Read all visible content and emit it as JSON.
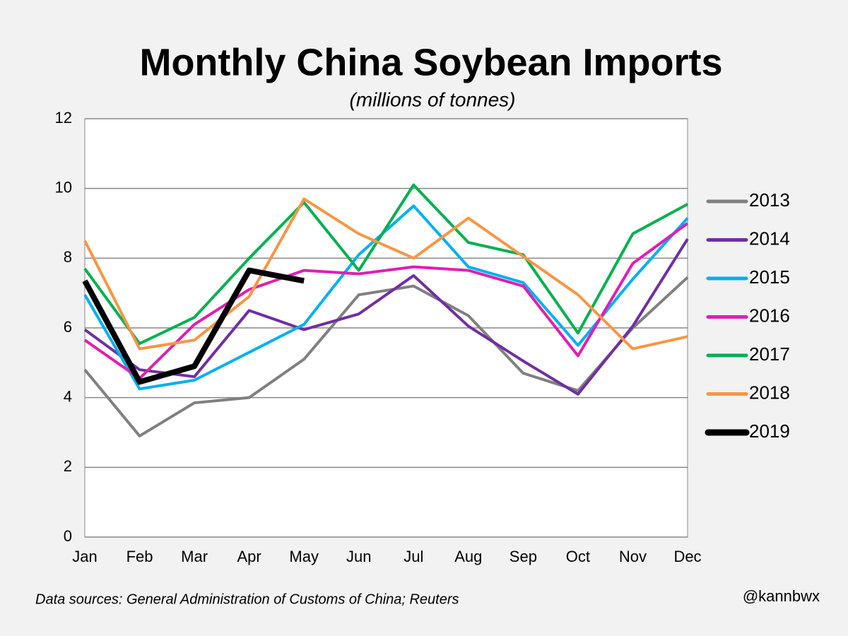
{
  "chart_data": {
    "type": "line",
    "title": "Monthly China Soybean Imports",
    "subtitle": "(millions of tonnes)",
    "source": "Data sources: General Administration of Customs of China; Reuters",
    "credit": "@kannbwx",
    "categories": [
      "Jan",
      "Feb",
      "Mar",
      "Apr",
      "May",
      "Jun",
      "Jul",
      "Aug",
      "Sep",
      "Oct",
      "Nov",
      "Dec"
    ],
    "series": [
      {
        "name": "2013",
        "color": "#808080",
        "width": 4,
        "values": [
          4.8,
          2.9,
          3.85,
          4.0,
          5.1,
          6.95,
          7.2,
          6.35,
          4.7,
          4.2,
          6.0,
          7.45
        ]
      },
      {
        "name": "2014",
        "color": "#7030a0",
        "width": 4,
        "values": [
          5.95,
          4.8,
          4.6,
          6.5,
          5.95,
          6.4,
          7.5,
          6.05,
          5.05,
          4.1,
          6.05,
          8.55
        ]
      },
      {
        "name": "2015",
        "color": "#00b0f0",
        "width": 4,
        "values": [
          6.95,
          4.25,
          4.5,
          5.3,
          6.1,
          8.1,
          9.5,
          7.75,
          7.3,
          5.5,
          7.4,
          9.15
        ]
      },
      {
        "name": "2016",
        "color": "#e01eb4",
        "width": 4,
        "values": [
          5.65,
          4.55,
          6.1,
          7.1,
          7.65,
          7.55,
          7.75,
          7.65,
          7.2,
          5.2,
          7.85,
          9.0
        ]
      },
      {
        "name": "2017",
        "color": "#00b050",
        "width": 4,
        "values": [
          7.7,
          5.55,
          6.3,
          8.0,
          9.6,
          7.65,
          10.1,
          8.45,
          8.1,
          5.85,
          8.7,
          9.55
        ]
      },
      {
        "name": "2018",
        "color": "#f79646",
        "width": 4,
        "values": [
          8.5,
          5.4,
          5.65,
          6.9,
          9.7,
          8.7,
          8.0,
          9.15,
          8.05,
          6.95,
          5.4,
          5.75
        ]
      },
      {
        "name": "2019",
        "color": "#000000",
        "width": 8,
        "values": [
          7.35,
          4.45,
          4.9,
          7.65,
          7.35,
          null,
          null,
          null,
          null,
          null,
          null,
          null
        ]
      }
    ],
    "ylim": [
      0,
      12
    ],
    "yticks": [
      0,
      2,
      4,
      6,
      8,
      10,
      12
    ],
    "grid": true
  }
}
